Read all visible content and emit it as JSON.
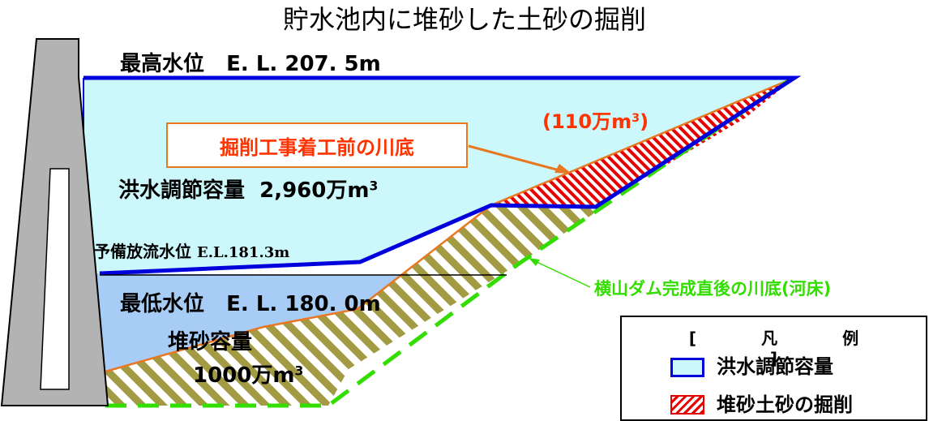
{
  "title": "貯水池内に堆砂した土砂の掘削",
  "labels": {
    "max_level_name": "最高水位",
    "max_level_value": "E. L. 207. 5m",
    "flood_capacity_name": "洪水調節容量",
    "flood_capacity_value": "2,960万m",
    "flood_capacity_sup": "3",
    "reserve_level_name": "予備放流水位",
    "reserve_level_value": "E.L.181.3m",
    "min_level_name": "最低水位",
    "min_level_value": "E. L. 180. 0m",
    "sediment_capacity_name": "堆砂容量",
    "sediment_capacity_value": "1000万m",
    "sediment_capacity_sup": "3",
    "excavation_volume_value": "(110万m",
    "excavation_volume_sup": "3",
    "excavation_volume_close": ")",
    "pre_excavation_riverbed": "掘削工事着工前の川底",
    "original_riverbed": "横山ダム完成直後の川底(河床)"
  },
  "legend": {
    "title_left": "[",
    "title_chars": [
      "凡",
      "例"
    ],
    "title_right": "]",
    "items": [
      {
        "label": "洪水調節容量"
      },
      {
        "label": "堆砂土砂の掘削"
      }
    ]
  },
  "colors": {
    "flood_area": "#ccf7fb",
    "flood_border": "#0000dd",
    "low_water": "#a7cdf7",
    "sediment_hatch": "#a39b43",
    "excavation_hatch": "#e60000",
    "riverbed_dashed": "#33dd00",
    "callout_line": "#e87722",
    "dam": "#b3b3b3"
  }
}
